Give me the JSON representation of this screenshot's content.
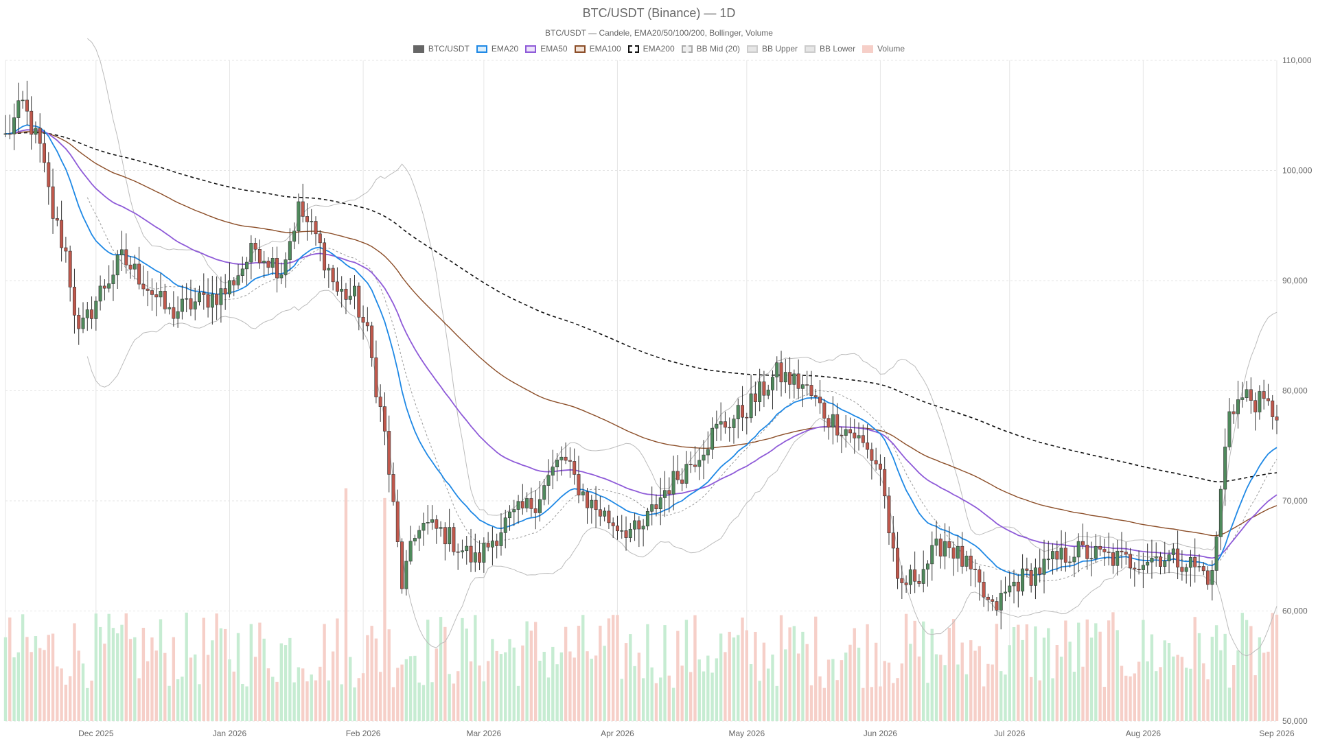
{
  "chart_data": {
    "type": "candlestick",
    "title": "BTC/USDT (Binance) — 1D",
    "subtitle": "BTC/USDT — Candele, EMA20/50/100/200, Bollinger, Volume",
    "legend": [
      {
        "name": "BTC/USDT",
        "style": "solid",
        "fill": "#666666",
        "stroke": "#666666"
      },
      {
        "name": "EMA20",
        "style": "solid",
        "fill": "#dbeefb",
        "stroke": "#1e88e5"
      },
      {
        "name": "EMA50",
        "style": "solid",
        "fill": "#ece3fa",
        "stroke": "#8e5ad8"
      },
      {
        "name": "EMA100",
        "style": "solid",
        "fill": "#f3e3d8",
        "stroke": "#8b4d27"
      },
      {
        "name": "EMA200",
        "style": "dashed",
        "fill": "#ffffff",
        "stroke": "#111111"
      },
      {
        "name": "BB Mid (20)",
        "style": "dashed",
        "fill": "#eeeeee",
        "stroke": "#aaaaaa"
      },
      {
        "name": "BB Upper",
        "style": "solid",
        "fill": "#e6e6e6",
        "stroke": "#cccccc"
      },
      {
        "name": "BB Lower",
        "style": "solid",
        "fill": "#e6e6e6",
        "stroke": "#cccccc"
      },
      {
        "name": "Volume",
        "style": "solid",
        "fill": "#f6cfc8",
        "stroke": "#f6cfc8"
      }
    ],
    "x_tick_labels": [
      "Dec 2025",
      "Jan 2026",
      "Feb 2026",
      "Mar 2026",
      "Apr 2026",
      "May 2026",
      "Jun 2026",
      "Jul 2026",
      "Aug 2026",
      "Sep 2026"
    ],
    "x_range": [
      "2025-11-10",
      "2026-09-01"
    ],
    "y_tick_labels": [
      "50,000",
      "60,000",
      "70,000",
      "80,000",
      "90,000",
      "100,000",
      "110,000"
    ],
    "ylim": [
      50000,
      110000
    ],
    "grid": true,
    "legend_position": "top-center",
    "colors": {
      "up": "#4f8a5c",
      "down": "#c0584c",
      "vol_up": "#c6ecd2",
      "vol_down": "#f6cfc8",
      "ema20": "#1e88e5",
      "ema50": "#8e5ad8",
      "ema100": "#8b4d27",
      "ema200": "#111111",
      "bb_mid": "#999999",
      "bb_band": "#bbbbbb",
      "grid": "#e6e6e6"
    },
    "close_keypoints": [
      [
        "2025-11-10",
        103000
      ],
      [
        "2025-11-14",
        106000
      ],
      [
        "2025-11-18",
        102000
      ],
      [
        "2025-11-21",
        96000
      ],
      [
        "2025-11-24",
        92500
      ],
      [
        "2025-11-27",
        85000
      ],
      [
        "2025-12-02",
        89000
      ],
      [
        "2025-12-07",
        92000
      ],
      [
        "2025-12-12",
        90000
      ],
      [
        "2025-12-18",
        87000
      ],
      [
        "2025-12-24",
        88000
      ],
      [
        "2025-12-31",
        89000
      ],
      [
        "2026-01-07",
        93000
      ],
      [
        "2026-01-13",
        91000
      ],
      [
        "2026-01-17",
        96500
      ],
      [
        "2026-01-21",
        94000
      ],
      [
        "2026-01-26",
        89000
      ],
      [
        "2026-01-30",
        88500
      ],
      [
        "2026-02-02",
        85000
      ],
      [
        "2026-02-06",
        76000
      ],
      [
        "2026-02-10",
        62500
      ],
      [
        "2026-02-14",
        68000
      ],
      [
        "2026-02-20",
        67000
      ],
      [
        "2026-02-27",
        64500
      ],
      [
        "2026-03-06",
        68000
      ],
      [
        "2026-03-13",
        70000
      ],
      [
        "2026-03-19",
        74000
      ],
      [
        "2026-03-25",
        70000
      ],
      [
        "2026-03-31",
        68000
      ],
      [
        "2026-04-06",
        67000
      ],
      [
        "2026-04-12",
        71000
      ],
      [
        "2026-04-18",
        73500
      ],
      [
        "2026-04-24",
        76500
      ],
      [
        "2026-04-30",
        78000
      ],
      [
        "2026-05-08",
        81500
      ],
      [
        "2026-05-14",
        80500
      ],
      [
        "2026-05-20",
        77500
      ],
      [
        "2026-05-26",
        76000
      ],
      [
        "2026-06-01",
        73000
      ],
      [
        "2026-06-05",
        62000
      ],
      [
        "2026-06-10",
        63500
      ],
      [
        "2026-06-16",
        66500
      ],
      [
        "2026-06-21",
        64000
      ],
      [
        "2026-06-27",
        60000
      ],
      [
        "2026-07-02",
        62500
      ],
      [
        "2026-07-09",
        64000
      ],
      [
        "2026-07-16",
        65500
      ],
      [
        "2026-07-22",
        65000
      ],
      [
        "2026-07-29",
        64500
      ],
      [
        "2026-08-05",
        65000
      ],
      [
        "2026-08-11",
        64500
      ],
      [
        "2026-08-17",
        63000
      ],
      [
        "2026-08-21",
        78500
      ],
      [
        "2026-08-25",
        79500
      ],
      [
        "2026-09-01",
        78000
      ]
    ]
  }
}
